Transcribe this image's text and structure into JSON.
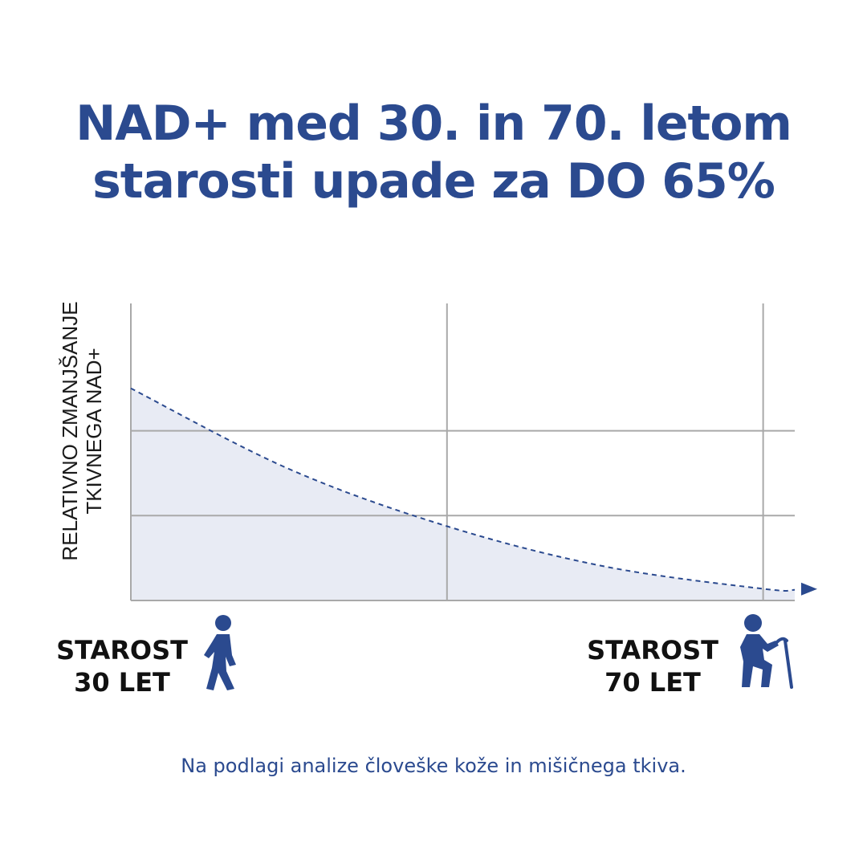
{
  "title": {
    "line1": "NAD+ med 30. in 70. letom",
    "line2": "starosti upade za DO 65%"
  },
  "colors": {
    "brand_blue": "#2b4a8f",
    "grid": "#a9a9a9",
    "fill": "#e8ebf4",
    "text_dark": "#111111"
  },
  "chart_data": {
    "type": "area",
    "ylabel_lines": [
      "RELATIVNO ZMANJŠANJE",
      "TKIVNEGA NAD+"
    ],
    "x": [
      30,
      40,
      50,
      60,
      70,
      72
    ],
    "values": [
      1.0,
      0.62,
      0.35,
      0.16,
      0.055,
      0.05
    ],
    "xlim": [
      30,
      72
    ],
    "ylim": [
      0,
      1.4
    ],
    "grid": true,
    "line_style": "dashed",
    "end_arrow": true,
    "start_label": {
      "line1": "STAROST",
      "line2": "30 LET",
      "icon": "walking-person-icon"
    },
    "end_label": {
      "line1": "STAROST",
      "line2": "70 LET",
      "icon": "elderly-person-with-cane-icon"
    }
  },
  "footnote": "Na podlagi analize človeške kože in mišičnega tkiva."
}
